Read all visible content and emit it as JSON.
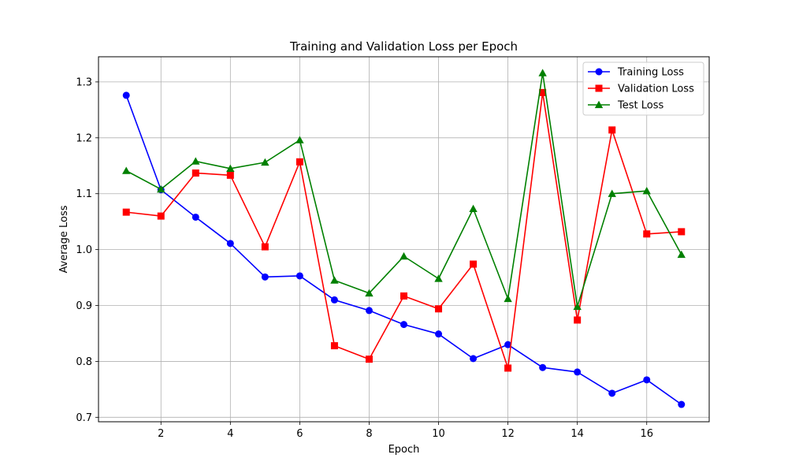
{
  "chart_data": {
    "type": "line",
    "title": "Training and Validation Loss per Epoch",
    "xlabel": "Epoch",
    "ylabel": "Average Loss",
    "xlim": [
      0.2,
      17.8
    ],
    "ylim": [
      0.692,
      1.345
    ],
    "xticks": [
      2,
      4,
      6,
      8,
      10,
      12,
      14,
      16
    ],
    "yticks": [
      0.7,
      0.8,
      0.9,
      1.0,
      1.1,
      1.2,
      1.3
    ],
    "ytick_labels": [
      "0.7",
      "0.8",
      "0.9",
      "1.0",
      "1.1",
      "1.2",
      "1.3"
    ],
    "grid": true,
    "legend_position": "top-right",
    "x": [
      1,
      2,
      3,
      4,
      5,
      6,
      7,
      8,
      9,
      10,
      11,
      12,
      13,
      14,
      15,
      16,
      17
    ],
    "series": [
      {
        "name": "Training Loss",
        "color": "#0000ff",
        "marker": "circle",
        "values": [
          1.276,
          1.107,
          1.058,
          1.011,
          0.951,
          0.953,
          0.91,
          0.891,
          0.866,
          0.849,
          0.805,
          0.83,
          0.789,
          0.781,
          0.743,
          0.767,
          0.723
        ]
      },
      {
        "name": "Validation Loss",
        "color": "#ff0000",
        "marker": "square",
        "values": [
          1.067,
          1.06,
          1.137,
          1.133,
          1.005,
          1.157,
          0.828,
          0.804,
          0.917,
          0.894,
          0.974,
          0.788,
          1.281,
          0.874,
          1.214,
          1.028,
          1.032
        ]
      },
      {
        "name": "Test Loss",
        "color": "#008000",
        "marker": "triangle",
        "values": [
          1.141,
          1.108,
          1.158,
          1.145,
          1.156,
          1.196,
          0.945,
          0.922,
          0.988,
          0.948,
          1.073,
          0.912,
          1.316,
          0.898,
          1.1,
          1.105,
          0.991
        ]
      }
    ]
  }
}
